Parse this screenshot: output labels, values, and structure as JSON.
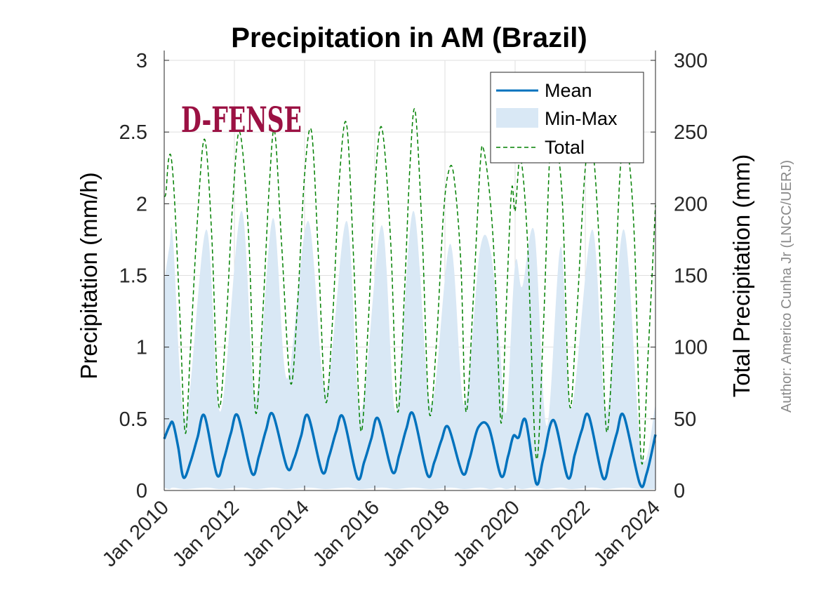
{
  "chart_data": {
    "type": "line",
    "title": "Precipitation in AM (Brazil)",
    "ylabel_left": "Precipitation (mm/h)",
    "ylabel_right": "Total Precipitation (mm)",
    "author_note": "Author: Americo Cunha Jr (LNCC/UERJ)",
    "logo_text": "D-FENSE",
    "x_tick_labels": [
      "Jan 2010",
      "Jan 2012",
      "Jan 2014",
      "Jan 2016",
      "Jan 2018",
      "Jan 2020",
      "Jan 2022",
      "Jan 2024"
    ],
    "x_tick_years": [
      2010,
      2012,
      2014,
      2016,
      2018,
      2020,
      2022,
      2024
    ],
    "xlim": [
      2010,
      2024
    ],
    "ylim_left": [
      0,
      3
    ],
    "ylim_right": [
      0,
      300
    ],
    "y_ticks_left": [
      0,
      0.5,
      1,
      1.5,
      2,
      2.5,
      3
    ],
    "y_tick_labels_left": [
      "0",
      "0.5",
      "1",
      "1.5",
      "2",
      "2.5",
      "3"
    ],
    "y_ticks_right": [
      0,
      50,
      100,
      150,
      200,
      250,
      300
    ],
    "y_tick_labels_right": [
      "0",
      "50",
      "100",
      "150",
      "200",
      "250",
      "300"
    ],
    "grid": true,
    "legend_placement": "top-right",
    "legend": [
      {
        "label": "Mean",
        "style": "solid-line",
        "color": "#0072BD"
      },
      {
        "label": "Min-Max",
        "style": "fill",
        "color": "#D9E8F5"
      },
      {
        "label": "Total",
        "style": "dashed-line",
        "color": "#008000"
      }
    ],
    "series": [
      {
        "name": "Mean",
        "axis": "left",
        "color": "#0072BD",
        "x": [
          2010.0,
          2010.15,
          2010.25,
          2010.4,
          2010.55,
          2010.75,
          2010.95,
          2011.15,
          2011.5,
          2011.7,
          2011.9,
          2012.1,
          2012.5,
          2012.7,
          2012.9,
          2013.1,
          2013.5,
          2013.7,
          2013.9,
          2014.1,
          2014.5,
          2014.7,
          2014.9,
          2015.1,
          2015.5,
          2015.7,
          2015.9,
          2016.1,
          2016.5,
          2016.7,
          2016.9,
          2017.1,
          2017.5,
          2017.7,
          2017.9,
          2018.1,
          2018.5,
          2018.7,
          2018.95,
          2019.25,
          2019.6,
          2019.8,
          2019.95,
          2020.1,
          2020.3,
          2020.6,
          2020.8,
          2021.1,
          2021.5,
          2021.7,
          2021.9,
          2022.1,
          2022.5,
          2022.7,
          2022.9,
          2023.1,
          2023.55,
          2023.75,
          2024.0
        ],
        "values": [
          0.36,
          0.45,
          0.47,
          0.3,
          0.09,
          0.2,
          0.37,
          0.52,
          0.11,
          0.22,
          0.4,
          0.52,
          0.12,
          0.24,
          0.42,
          0.53,
          0.16,
          0.22,
          0.38,
          0.52,
          0.13,
          0.24,
          0.41,
          0.51,
          0.09,
          0.2,
          0.36,
          0.5,
          0.13,
          0.25,
          0.43,
          0.53,
          0.11,
          0.2,
          0.35,
          0.44,
          0.12,
          0.22,
          0.44,
          0.44,
          0.1,
          0.24,
          0.38,
          0.37,
          0.49,
          0.05,
          0.22,
          0.49,
          0.09,
          0.25,
          0.42,
          0.52,
          0.09,
          0.22,
          0.4,
          0.52,
          0.05,
          0.12,
          0.39
        ]
      },
      {
        "name": "Min-Max",
        "axis": "left",
        "color": "#D9E8F5",
        "x": [
          2010.0,
          2010.15,
          2010.25,
          2010.6,
          2011.2,
          2011.6,
          2012.2,
          2012.6,
          2013.1,
          2013.5,
          2014.1,
          2014.6,
          2015.2,
          2015.6,
          2016.2,
          2016.6,
          2017.1,
          2017.6,
          2018.15,
          2018.55,
          2019.0,
          2019.3,
          2019.55,
          2019.75,
          2020.0,
          2020.2,
          2020.55,
          2020.9,
          2021.3,
          2021.6,
          2022.2,
          2022.6,
          2023.1,
          2023.6,
          2024.0
        ],
        "min_values": [
          0.02,
          0.01,
          0.02,
          0.01,
          0.02,
          0.01,
          0.02,
          0.01,
          0.02,
          0.01,
          0.02,
          0.01,
          0.02,
          0.01,
          0.02,
          0.01,
          0.02,
          0.01,
          0.02,
          0.01,
          0.02,
          0.01,
          0.02,
          0.01,
          0.02,
          0.01,
          0.02,
          0.01,
          0.02,
          0.01,
          0.02,
          0.01,
          0.02,
          0.01,
          0.01
        ],
        "max_values": [
          1.45,
          1.7,
          1.75,
          0.5,
          1.82,
          0.55,
          1.95,
          0.65,
          1.9,
          0.78,
          1.88,
          0.7,
          1.88,
          0.55,
          1.85,
          0.55,
          1.95,
          0.6,
          1.72,
          0.6,
          1.68,
          1.67,
          1.05,
          0.55,
          1.58,
          1.42,
          1.8,
          0.45,
          1.7,
          0.58,
          1.82,
          0.55,
          1.82,
          0.25,
          0.6
        ]
      },
      {
        "name": "Total",
        "axis": "right",
        "color": "#008000",
        "x": [
          2010.0,
          2010.05,
          2010.12,
          2010.2,
          2010.3,
          2010.45,
          2010.6,
          2010.75,
          2010.95,
          2011.15,
          2011.35,
          2011.55,
          2011.75,
          2011.95,
          2012.15,
          2012.4,
          2012.6,
          2012.8,
          2013.0,
          2013.15,
          2013.35,
          2013.6,
          2013.8,
          2014.0,
          2014.2,
          2014.4,
          2014.6,
          2014.8,
          2015.0,
          2015.2,
          2015.4,
          2015.6,
          2015.8,
          2016.0,
          2016.2,
          2016.45,
          2016.65,
          2016.85,
          2017.0,
          2017.15,
          2017.35,
          2017.55,
          2017.75,
          2017.95,
          2018.1,
          2018.25,
          2018.45,
          2018.6,
          2018.8,
          2019.0,
          2019.1,
          2019.3,
          2019.45,
          2019.6,
          2019.75,
          2019.9,
          2020.0,
          2020.15,
          2020.35,
          2020.6,
          2020.8,
          2021.0,
          2021.15,
          2021.35,
          2021.55,
          2021.75,
          2022.0,
          2022.2,
          2022.4,
          2022.6,
          2022.8,
          2023.0,
          2023.2,
          2023.4,
          2023.6,
          2023.8,
          2024.0
        ],
        "values": [
          205,
          208,
          230,
          232,
          200,
          120,
          40,
          100,
          190,
          245,
          180,
          60,
          110,
          200,
          250,
          180,
          55,
          120,
          215,
          250,
          170,
          75,
          130,
          220,
          250,
          160,
          62,
          120,
          220,
          255,
          160,
          42,
          110,
          210,
          253,
          175,
          55,
          140,
          225,
          265,
          180,
          55,
          100,
          190,
          222,
          220,
          160,
          55,
          130,
          225,
          238,
          200,
          140,
          47,
          130,
          210,
          195,
          232,
          175,
          23,
          110,
          240,
          245,
          200,
          60,
          120,
          225,
          240,
          170,
          42,
          110,
          225,
          238,
          175,
          20,
          100,
          199
        ]
      }
    ]
  }
}
